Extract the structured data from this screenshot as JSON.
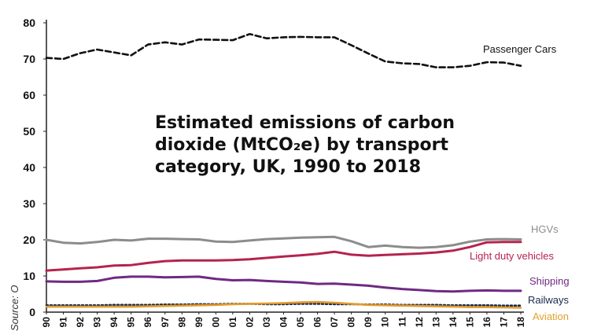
{
  "chart_data": {
    "type": "line",
    "title_lines": [
      "Estimated emissions of carbon",
      "dioxide (MtCO₂e) by transport",
      "category, UK, 1990 to 2018"
    ],
    "source_label": "Source: O",
    "x": [
      "90",
      "91",
      "92",
      "93",
      "94",
      "95",
      "96",
      "97",
      "98",
      "99",
      "00",
      "01",
      "02",
      "03",
      "04",
      "05",
      "06",
      "07",
      "08",
      "09",
      "10",
      "11",
      "12",
      "13",
      "14",
      "15",
      "16",
      "17",
      "18"
    ],
    "ylim": [
      0,
      80
    ],
    "yticks": [
      0,
      10,
      20,
      30,
      40,
      50,
      60,
      70,
      80
    ],
    "grid": false,
    "series": [
      {
        "name": "Passenger Cars",
        "color": "#111111",
        "dash": "dashed",
        "values": [
          70.3,
          70.0,
          71.6,
          72.6,
          71.8,
          71.0,
          74.0,
          74.6,
          74.0,
          75.4,
          75.3,
          75.2,
          76.9,
          75.7,
          76.0,
          76.1,
          76.0,
          76.0,
          73.8,
          71.5,
          69.3,
          68.8,
          68.6,
          67.7,
          67.7,
          68.1,
          69.1,
          69.0,
          68.1
        ]
      },
      {
        "name": "HGVs",
        "color": "#8c8c8c",
        "dash": "solid",
        "values": [
          20.0,
          19.2,
          19.0,
          19.4,
          20.0,
          19.8,
          20.3,
          20.3,
          20.2,
          20.1,
          19.5,
          19.4,
          19.8,
          20.2,
          20.4,
          20.6,
          20.7,
          20.8,
          19.6,
          18.0,
          18.4,
          18.0,
          17.8,
          18.0,
          18.5,
          19.5,
          20.1,
          20.2,
          20.1
        ]
      },
      {
        "name": "Light duty vehicles",
        "color": "#b5234f",
        "dash": "solid",
        "values": [
          11.5,
          11.8,
          12.1,
          12.4,
          12.9,
          13.0,
          13.6,
          14.1,
          14.3,
          14.3,
          14.3,
          14.4,
          14.6,
          15.0,
          15.4,
          15.7,
          16.1,
          16.7,
          15.9,
          15.6,
          15.8,
          16.0,
          16.2,
          16.5,
          17.0,
          18.0,
          19.3,
          19.4,
          19.4
        ]
      },
      {
        "name": "Shipping",
        "color": "#6f2a82",
        "dash": "solid",
        "values": [
          8.5,
          8.4,
          8.4,
          8.6,
          9.5,
          9.8,
          9.8,
          9.6,
          9.7,
          9.8,
          9.2,
          8.8,
          8.9,
          8.6,
          8.4,
          8.2,
          7.8,
          7.9,
          7.6,
          7.3,
          6.8,
          6.4,
          6.1,
          5.8,
          5.7,
          5.9,
          6.0,
          5.9,
          5.9
        ]
      },
      {
        "name": "Railways",
        "color": "#1a2a4a",
        "dash": "dotted",
        "values": [
          1.9,
          1.9,
          1.9,
          1.9,
          2.0,
          2.0,
          2.0,
          2.1,
          2.1,
          2.2,
          2.2,
          2.3,
          2.3,
          2.2,
          2.2,
          2.3,
          2.3,
          2.2,
          2.2,
          2.1,
          2.1,
          2.0,
          2.0,
          2.0,
          1.9,
          1.9,
          1.9,
          1.8,
          1.8
        ]
      },
      {
        "name": "Aviation",
        "color": "#e39a2b",
        "dash": "solid",
        "values": [
          1.5,
          1.5,
          1.5,
          1.5,
          1.5,
          1.5,
          1.6,
          1.7,
          1.8,
          1.9,
          2.0,
          2.2,
          2.3,
          2.4,
          2.5,
          2.7,
          2.8,
          2.6,
          2.3,
          2.0,
          1.9,
          1.8,
          1.7,
          1.6,
          1.5,
          1.4,
          1.4,
          1.3,
          1.2
        ]
      }
    ],
    "label_colors": {
      "Passenger Cars": "#111111",
      "HGVs": "#8c8c8c",
      "Light duty vehicles": "#b5234f",
      "Shipping": "#6f2a82",
      "Railways": "#1a2a4a",
      "Aviation": "#e3a02b"
    }
  }
}
